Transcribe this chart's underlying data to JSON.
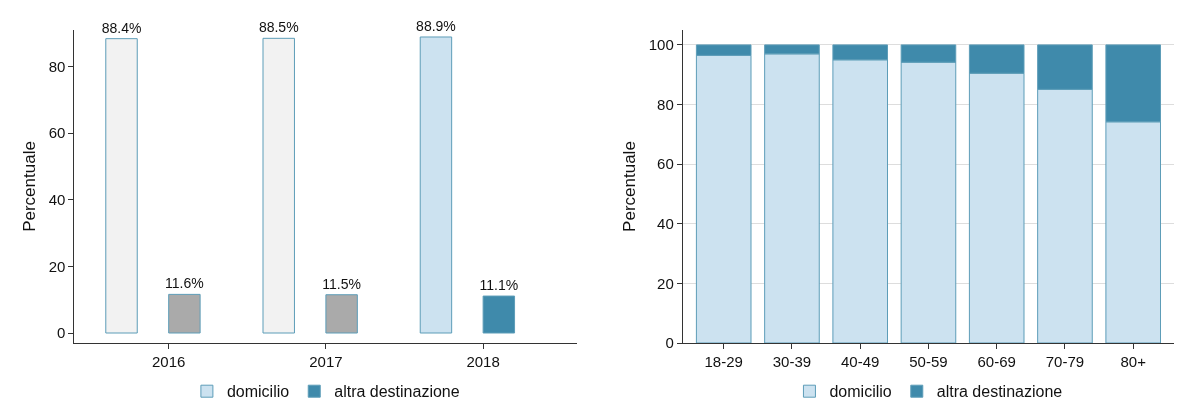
{
  "chart_data": [
    {
      "type": "bar",
      "ylabel": "Percentuale",
      "categories": [
        "2016",
        "2017",
        "2018"
      ],
      "ylim": [
        -3,
        91
      ],
      "yticks": [
        0,
        20,
        40,
        60,
        80
      ],
      "grid": false,
      "legend": "bottom",
      "series": [
        {
          "name": "domicilio",
          "color": "#cce2f0",
          "colors": [
            "#f2f2f2",
            "#f2f2f2",
            "#cce2f0"
          ],
          "values": [
            88.4,
            88.5,
            88.9
          ],
          "value_labels": [
            "88.4%",
            "88.5%",
            "88.9%"
          ]
        },
        {
          "name": "altra destinazione",
          "color": "#3f8aab",
          "colors": [
            "#aaaaaa",
            "#aaaaaa",
            "#3f8aab"
          ],
          "values": [
            11.6,
            11.5,
            11.1
          ],
          "value_labels": [
            "11.6%",
            "11.5%",
            "11.1%"
          ]
        }
      ]
    },
    {
      "type": "bar",
      "stacked": true,
      "ylabel": "Percentuale",
      "categories": [
        "18-29",
        "30-39",
        "40-49",
        "50-59",
        "60-69",
        "70-79",
        "80+"
      ],
      "ylim": [
        0,
        105
      ],
      "yticks": [
        0,
        20,
        40,
        60,
        80,
        100
      ],
      "grid": "y",
      "legend": "bottom",
      "series": [
        {
          "name": "domicilio",
          "color": "#cce2f0",
          "values": [
            96.5,
            97.0,
            95.0,
            94.2,
            90.5,
            85.1,
            74.2
          ]
        },
        {
          "name": "altra destinazione",
          "color": "#3f8aab",
          "values": [
            3.5,
            3.0,
            5.0,
            5.8,
            9.5,
            14.9,
            25.8
          ]
        }
      ]
    }
  ]
}
